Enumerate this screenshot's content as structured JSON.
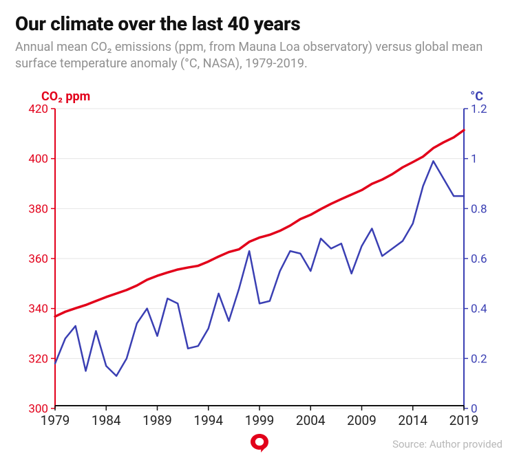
{
  "header": {
    "title": "Our climate over the last 40 years",
    "subtitle": "Annual mean CO₂ emissions (ppm, from Mauna Loa observatory) versus global mean surface temperature anomaly (°C, NASA), 1979-2019."
  },
  "chart": {
    "type": "dual-axis-line",
    "background_color": "#ffffff",
    "grid_color": "#e6e6e6",
    "axis_line_color": "#111111",
    "x": {
      "min": 1979,
      "max": 2019,
      "ticks": [
        1979,
        1984,
        1989,
        1994,
        1999,
        2004,
        2009,
        2014,
        2019
      ],
      "tick_fontsize": 19,
      "tick_color": "#222222",
      "line_width": 2
    },
    "y_left": {
      "label": "CO₂ ppm",
      "label_fontsize": 18,
      "label_fontweight": 700,
      "min": 300,
      "max": 420,
      "ticks": [
        300,
        320,
        340,
        360,
        380,
        400,
        420
      ],
      "color": "#e2001a",
      "line_width": 2
    },
    "y_right": {
      "label": "°C",
      "label_fontsize": 18,
      "label_fontweight": 700,
      "min": 0,
      "max": 1.2,
      "ticks": [
        0,
        0.2,
        0.4,
        0.6,
        0.8,
        1.0,
        1.2
      ],
      "color": "#3a3fb3",
      "line_width": 2
    },
    "series": {
      "co2_ppm": {
        "axis": "left",
        "color": "#e2001a",
        "line_width": 3.5,
        "x": [
          1979,
          1980,
          1981,
          1982,
          1983,
          1984,
          1985,
          1986,
          1987,
          1988,
          1989,
          1990,
          1991,
          1992,
          1993,
          1994,
          1995,
          1996,
          1997,
          1998,
          1999,
          2000,
          2001,
          2002,
          2003,
          2004,
          2005,
          2006,
          2007,
          2008,
          2009,
          2010,
          2011,
          2012,
          2013,
          2014,
          2015,
          2016,
          2017,
          2018,
          2019
        ],
        "y": [
          336.8,
          338.7,
          340.1,
          341.4,
          343.0,
          344.6,
          346.0,
          347.4,
          349.2,
          351.5,
          353.1,
          354.4,
          355.6,
          356.4,
          357.1,
          358.8,
          360.8,
          362.6,
          363.7,
          366.7,
          368.4,
          369.5,
          371.1,
          373.2,
          375.8,
          377.5,
          379.8,
          381.9,
          383.8,
          385.6,
          387.4,
          389.9,
          391.6,
          393.8,
          396.5,
          398.6,
          400.8,
          404.2,
          406.5,
          408.5,
          411.4
        ]
      },
      "temp_anomaly_c": {
        "axis": "right",
        "color": "#3a3fb3",
        "line_width": 2.5,
        "x": [
          1979,
          1980,
          1981,
          1982,
          1983,
          1984,
          1985,
          1986,
          1987,
          1988,
          1989,
          1990,
          1991,
          1992,
          1993,
          1994,
          1995,
          1996,
          1997,
          1998,
          1999,
          2000,
          2001,
          2002,
          2003,
          2004,
          2005,
          2006,
          2007,
          2008,
          2009,
          2010,
          2011,
          2012,
          2013,
          2014,
          2015,
          2016,
          2017,
          2018,
          2019
        ],
        "y": [
          0.18,
          0.28,
          0.33,
          0.15,
          0.31,
          0.17,
          0.13,
          0.2,
          0.34,
          0.4,
          0.29,
          0.44,
          0.42,
          0.24,
          0.25,
          0.32,
          0.46,
          0.35,
          0.48,
          0.63,
          0.42,
          0.43,
          0.55,
          0.63,
          0.62,
          0.55,
          0.68,
          0.64,
          0.66,
          0.54,
          0.65,
          0.72,
          0.61,
          0.64,
          0.67,
          0.74,
          0.89,
          0.99,
          0.92,
          0.85,
          0.85
        ]
      }
    }
  },
  "footer": {
    "source_label": "Source: Author provided"
  },
  "logo": {
    "name": "speech-bubble-icon",
    "fill_color": "#e2001a",
    "inner_color": "#ffffff"
  }
}
